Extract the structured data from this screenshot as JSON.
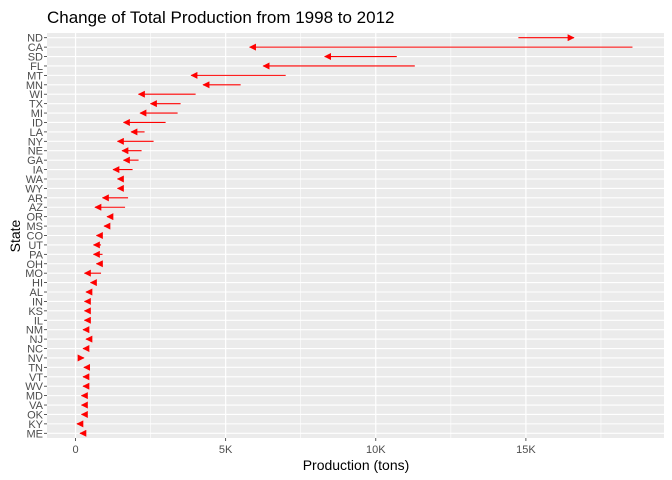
{
  "chart_data": {
    "type": "arrow-dumbbell",
    "title": "Change of Total Production from 1998 to 2012",
    "xlabel": "Production (tons)",
    "ylabel": "State",
    "xlim": [
      -950,
      19600
    ],
    "x_ticks": [
      0,
      5000,
      10000,
      15000
    ],
    "x_tick_labels": [
      "0",
      "5K",
      "10K",
      "15K"
    ],
    "grid": true,
    "arrow_color": "#ff0000",
    "panel_color": "#ebebeb",
    "series": [
      {
        "name": "1998",
        "values": [
          14750,
          18550,
          10700,
          11300,
          7000,
          5500,
          4000,
          3500,
          3400,
          3000,
          2300,
          2600,
          2200,
          2100,
          1900,
          1500,
          1450,
          1750,
          1650,
          1150,
          1100,
          850,
          850,
          900,
          800,
          850,
          550,
          500,
          450,
          400,
          350,
          350,
          450,
          300,
          250,
          300,
          300,
          280,
          250,
          250,
          230,
          100,
          180
        ]
      },
      {
        "name": "2012",
        "values": [
          16600,
          5800,
          8300,
          6250,
          3850,
          4250,
          2100,
          2500,
          2150,
          1600,
          1850,
          1400,
          1550,
          1600,
          1250,
          1400,
          1400,
          900,
          650,
          1050,
          950,
          700,
          600,
          600,
          700,
          300,
          500,
          350,
          300,
          300,
          300,
          250,
          350,
          250,
          280,
          280,
          250,
          250,
          200,
          200,
          200,
          50,
          150
        ]
      }
    ],
    "categories": [
      "ND",
      "CA",
      "SD",
      "FL",
      "MT",
      "MN",
      "WI",
      "TX",
      "MI",
      "ID",
      "LA",
      "NY",
      "NE",
      "GA",
      "IA",
      "WA",
      "WY",
      "AR",
      "AZ",
      "OR",
      "MS",
      "CO",
      "UT",
      "PA",
      "OH",
      "MO",
      "HI",
      "AL",
      "IN",
      "KS",
      "IL",
      "NM",
      "NJ",
      "NC",
      "NV",
      "TN",
      "VT",
      "WV",
      "MD",
      "VA",
      "OK",
      "KY",
      "ME"
    ]
  }
}
